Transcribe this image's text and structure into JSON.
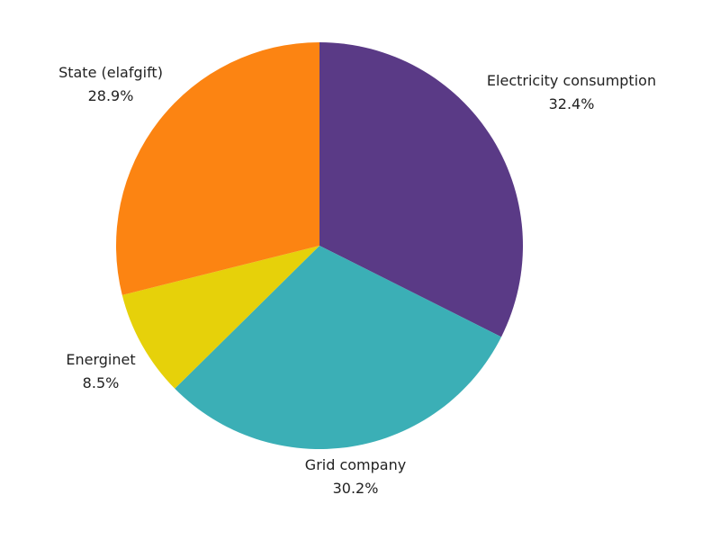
{
  "chart_data": {
    "type": "pie",
    "title": "",
    "start_angle_deg": 0,
    "direction": "clockwise",
    "slices": [
      {
        "label": "Electricity consumption",
        "value": 32.4,
        "value_label": "32.4%",
        "color": "#5a3a86"
      },
      {
        "label": "Grid company",
        "value": 30.2,
        "value_label": "30.2%",
        "color": "#3bafb6"
      },
      {
        "label": "Energinet",
        "value": 8.5,
        "value_label": "8.5%",
        "color": "#e6d10a"
      },
      {
        "label": "State (elafgift)",
        "value": 28.9,
        "value_label": "28.9%",
        "color": "#fc8412"
      }
    ],
    "legend": "none"
  }
}
